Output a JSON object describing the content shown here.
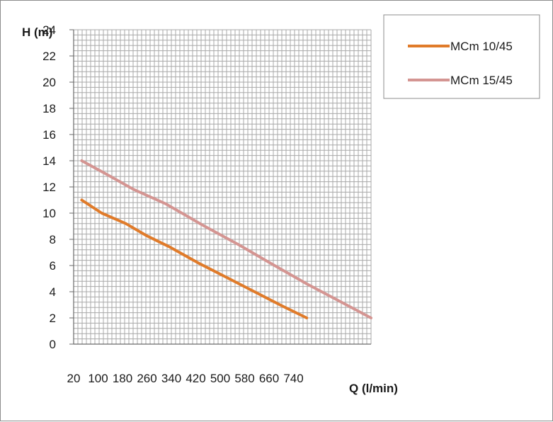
{
  "chart_data": {
    "type": "line",
    "xlabel": "Q (l/min)",
    "ylabel": "H (m)",
    "x_ticks": [
      "20",
      "100",
      "180",
      "260",
      "340",
      "420",
      "500",
      "580",
      "660",
      "740"
    ],
    "y_ticks": [
      "0",
      "2",
      "4",
      "6",
      "8",
      "10",
      "12",
      "14",
      "16",
      "18",
      "20",
      "22",
      "24"
    ],
    "xlim": [
      20,
      760
    ],
    "ylim": [
      0,
      24
    ],
    "grid": true,
    "legend": "top-right",
    "series": [
      {
        "name": "MCm 10/45",
        "color": "#e07b2a",
        "x": [
          40,
          90,
          150,
          200,
          260,
          330,
          400,
          470,
          540,
          600
        ],
        "y": [
          11,
          10,
          9.2,
          8.3,
          7.4,
          6.2,
          5.1,
          4.0,
          2.9,
          2.0
        ]
      },
      {
        "name": "MCm 15/45",
        "color": "#d49592",
        "x": [
          40,
          100,
          170,
          250,
          340,
          430,
          520,
          600,
          680,
          760
        ],
        "y": [
          14,
          13,
          11.8,
          10.7,
          9.1,
          7.6,
          6.0,
          4.6,
          3.3,
          2.0
        ]
      }
    ]
  }
}
